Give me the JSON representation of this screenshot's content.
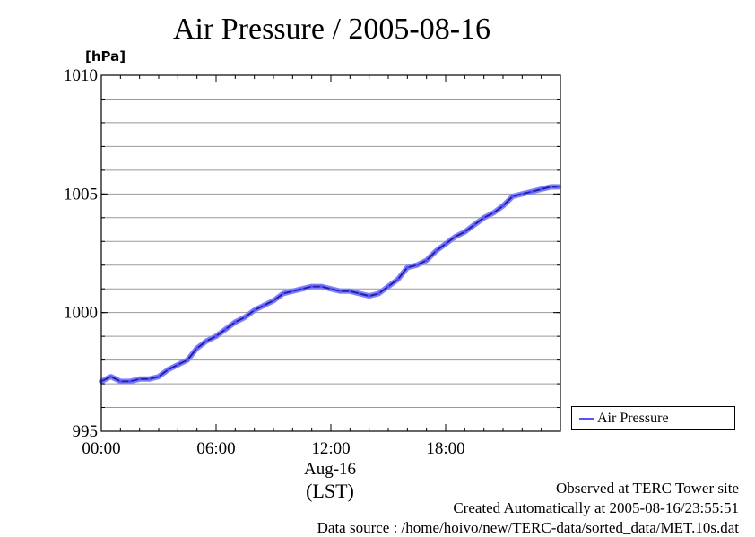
{
  "title": "Air Pressure / 2005-08-16",
  "y_unit": "[hPa]",
  "x_date_label": "Aug-16",
  "x_unit_label": "(LST)",
  "legend": {
    "label": "Air Pressure",
    "color": "#5555ff"
  },
  "footer": {
    "line1": "Observed at TERC Tower site",
    "line2": "Created Automatically at 2005-08-16/23:55:51",
    "line3": "Data source : /home/hoivo/new/TERC-data/sorted_data/MET.10s.dat"
  },
  "chart_data": {
    "type": "line",
    "title": "Air Pressure / 2005-08-16",
    "ylabel": "[hPa]",
    "xlabel": "(LST)",
    "xlim": [
      0,
      24
    ],
    "ylim": [
      995,
      1010
    ],
    "x_ticks": [
      {
        "value": 0,
        "label": "00:00"
      },
      {
        "value": 6,
        "label": "06:00"
      },
      {
        "value": 12,
        "label": "12:00"
      },
      {
        "value": 18,
        "label": "18:00"
      }
    ],
    "y_ticks": [
      {
        "value": 995,
        "label": "995"
      },
      {
        "value": 1000,
        "label": "1000"
      },
      {
        "value": 1005,
        "label": "1005"
      },
      {
        "value": 1010,
        "label": "1010"
      }
    ],
    "grid": true,
    "legend_position": "bottom-right outside",
    "series": [
      {
        "name": "Air Pressure",
        "color": "#5555ff",
        "x": [
          0,
          0.5,
          1,
          1.5,
          2,
          2.5,
          3,
          3.5,
          4,
          4.5,
          5,
          5.5,
          6,
          6.5,
          7,
          7.5,
          8,
          8.5,
          9,
          9.5,
          10,
          10.5,
          11,
          11.5,
          12,
          12.5,
          13,
          13.5,
          14,
          14.5,
          15,
          15.5,
          16,
          16.5,
          17,
          17.5,
          18,
          18.5,
          19,
          19.5,
          20,
          20.5,
          21,
          21.5,
          22,
          22.5,
          23,
          23.5,
          23.9
        ],
        "values": [
          997.1,
          997.3,
          997.1,
          997.1,
          997.2,
          997.2,
          997.3,
          997.6,
          997.8,
          998.0,
          998.5,
          998.8,
          999.0,
          999.3,
          999.6,
          999.8,
          1000.1,
          1000.3,
          1000.5,
          1000.8,
          1000.9,
          1001.0,
          1001.1,
          1001.1,
          1001.0,
          1000.9,
          1000.9,
          1000.8,
          1000.7,
          1000.8,
          1001.1,
          1001.4,
          1001.9,
          1002.0,
          1002.2,
          1002.6,
          1002.9,
          1003.2,
          1003.4,
          1003.7,
          1004.0,
          1004.2,
          1004.5,
          1004.9,
          1005.0,
          1005.1,
          1005.2,
          1005.3,
          1005.3
        ]
      }
    ]
  }
}
